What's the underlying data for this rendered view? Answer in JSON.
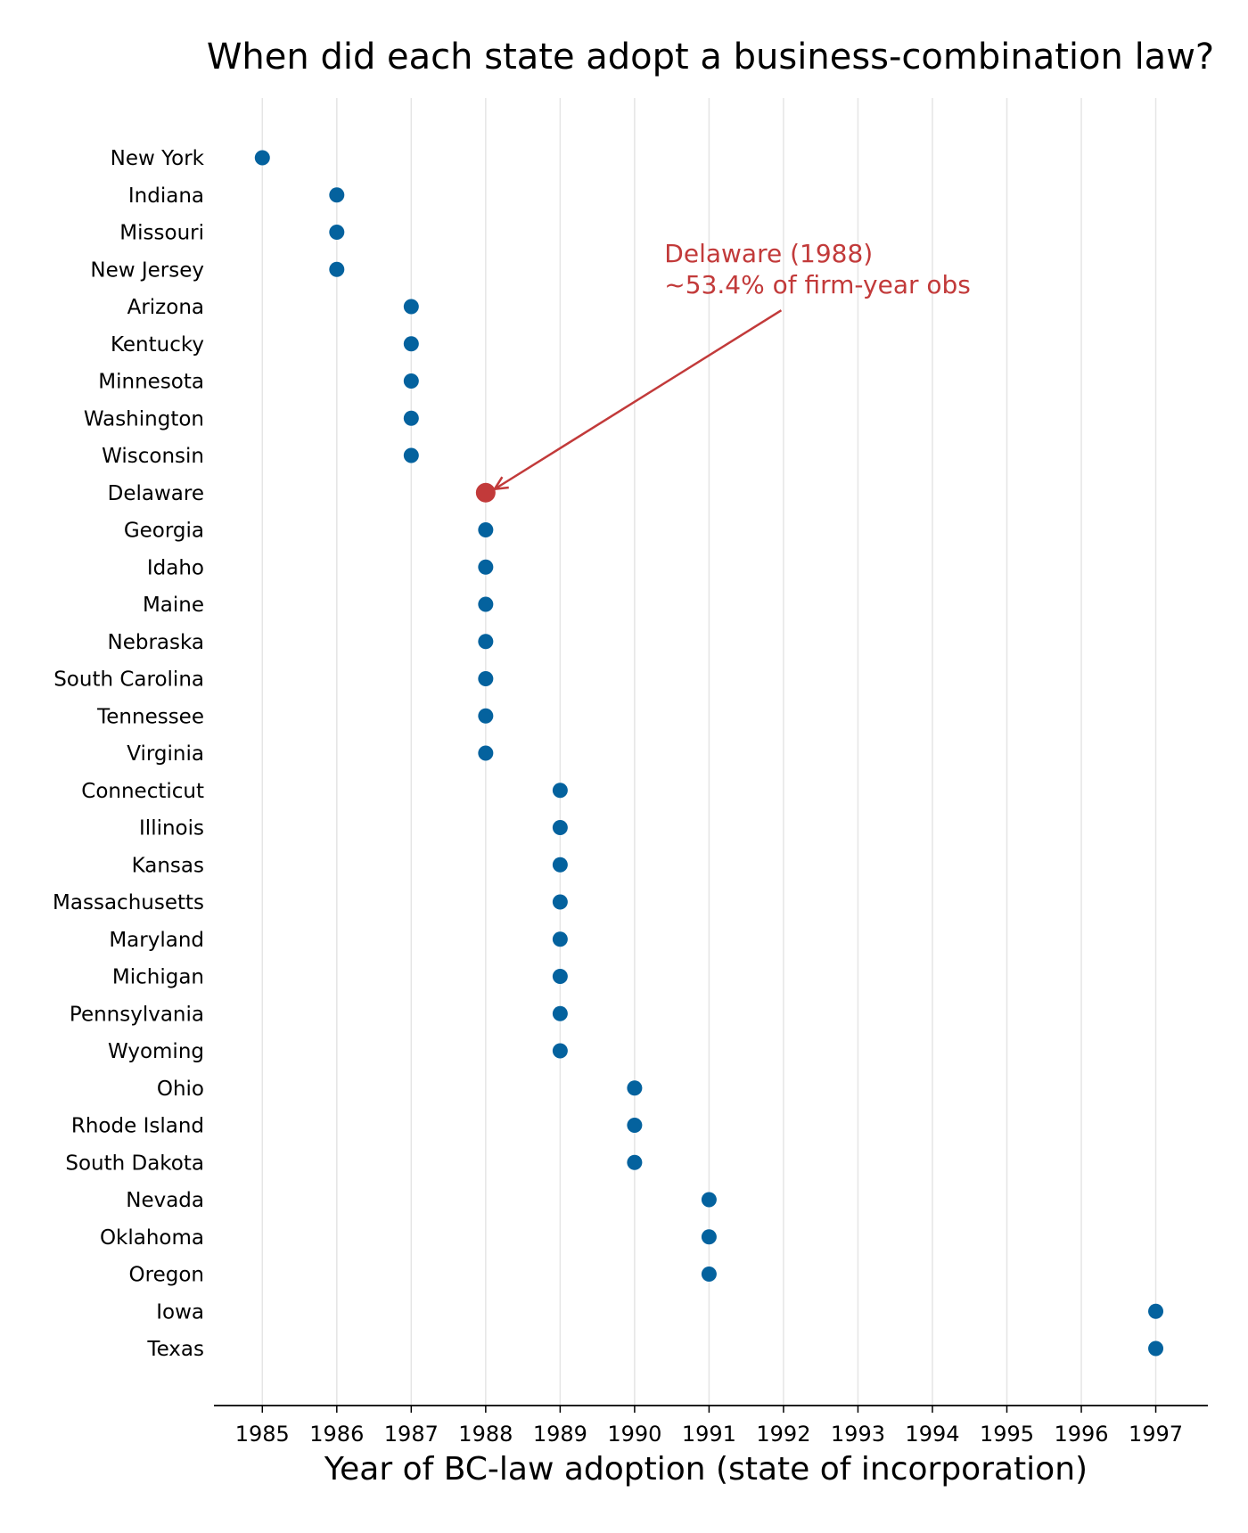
{
  "chart_data": {
    "type": "scatter",
    "title": "When did each state adopt a business-combination law?",
    "xlabel": "Year of BC-law adoption (state of incorporation)",
    "ylabel": "",
    "xlim": [
      1984.35,
      1997.7
    ],
    "xticks": [
      1985,
      1986,
      1987,
      1988,
      1989,
      1990,
      1991,
      1992,
      1993,
      1994,
      1995,
      1996,
      1997
    ],
    "grid": "vertical",
    "colors": {
      "point": "#04629e",
      "highlight": "#c23a3a",
      "grid": "#e5e5e5",
      "axis": "#000000"
    },
    "points": [
      {
        "state": "New York",
        "year": 1985
      },
      {
        "state": "Indiana",
        "year": 1986
      },
      {
        "state": "Missouri",
        "year": 1986
      },
      {
        "state": "New Jersey",
        "year": 1986
      },
      {
        "state": "Arizona",
        "year": 1987
      },
      {
        "state": "Kentucky",
        "year": 1987
      },
      {
        "state": "Minnesota",
        "year": 1987
      },
      {
        "state": "Washington",
        "year": 1987
      },
      {
        "state": "Wisconsin",
        "year": 1987
      },
      {
        "state": "Delaware",
        "year": 1988,
        "highlight": true
      },
      {
        "state": "Georgia",
        "year": 1988
      },
      {
        "state": "Idaho",
        "year": 1988
      },
      {
        "state": "Maine",
        "year": 1988
      },
      {
        "state": "Nebraska",
        "year": 1988
      },
      {
        "state": "South Carolina",
        "year": 1988
      },
      {
        "state": "Tennessee",
        "year": 1988
      },
      {
        "state": "Virginia",
        "year": 1988
      },
      {
        "state": "Connecticut",
        "year": 1989
      },
      {
        "state": "Illinois",
        "year": 1989
      },
      {
        "state": "Kansas",
        "year": 1989
      },
      {
        "state": "Massachusetts",
        "year": 1989
      },
      {
        "state": "Maryland",
        "year": 1989
      },
      {
        "state": "Michigan",
        "year": 1989
      },
      {
        "state": "Pennsylvania",
        "year": 1989
      },
      {
        "state": "Wyoming",
        "year": 1989
      },
      {
        "state": "Ohio",
        "year": 1990
      },
      {
        "state": "Rhode Island",
        "year": 1990
      },
      {
        "state": "South Dakota",
        "year": 1990
      },
      {
        "state": "Nevada",
        "year": 1991
      },
      {
        "state": "Oklahoma",
        "year": 1991
      },
      {
        "state": "Oregon",
        "year": 1991
      },
      {
        "state": "Iowa",
        "year": 1997
      },
      {
        "state": "Texas",
        "year": 1997
      }
    ],
    "annotation": {
      "lines": [
        "Delaware (1988)",
        "~53.4% of firm-year obs"
      ],
      "target_state": "Delaware",
      "target_year": 1988,
      "text_anchor_year": 1990.4,
      "text_anchor_row": 2.8,
      "arrow_start_year": 1991.97,
      "arrow_start_row": 4.1
    }
  }
}
